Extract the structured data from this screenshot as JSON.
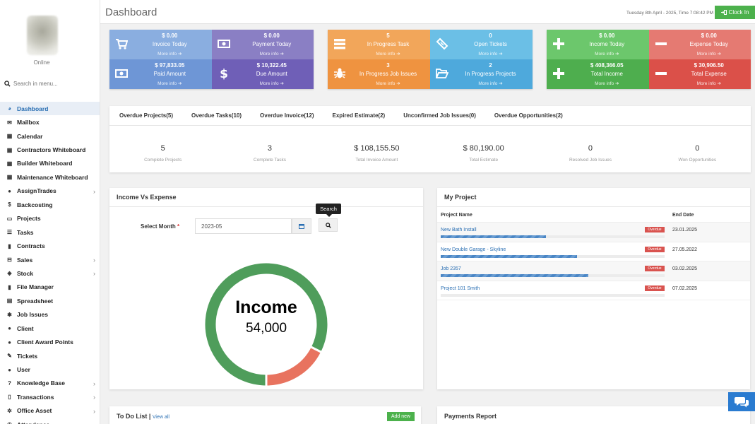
{
  "sidebar": {
    "status": "Online",
    "search_placeholder": "Search in menu...",
    "items": [
      {
        "label": "Dashboard",
        "icon": "palette-icon",
        "glyph": "◕",
        "active": true,
        "chevron": false
      },
      {
        "label": "Mailbox",
        "icon": "envelope-icon",
        "glyph": "✉",
        "active": false,
        "chevron": false
      },
      {
        "label": "Calendar",
        "icon": "calendar-icon",
        "glyph": "▦",
        "active": false,
        "chevron": false
      },
      {
        "label": "Contractors Whiteboard",
        "icon": "calendar-icon",
        "glyph": "▦",
        "active": false,
        "chevron": false
      },
      {
        "label": "Builder Whiteboard",
        "icon": "calendar-icon",
        "glyph": "▦",
        "active": false,
        "chevron": false
      },
      {
        "label": "Maintenance Whiteboard",
        "icon": "calendar-icon",
        "glyph": "▦",
        "active": false,
        "chevron": false
      },
      {
        "label": "AssignTrades",
        "icon": "user-icon",
        "glyph": "●",
        "active": false,
        "chevron": true
      },
      {
        "label": "Backcosting",
        "icon": "dollar-icon",
        "glyph": "$",
        "active": false,
        "chevron": false
      },
      {
        "label": "Projects",
        "icon": "folder-icon",
        "glyph": "▭",
        "active": false,
        "chevron": false
      },
      {
        "label": "Tasks",
        "icon": "list-icon",
        "glyph": "☰",
        "active": false,
        "chevron": false
      },
      {
        "label": "Contracts",
        "icon": "file-icon",
        "glyph": "▮",
        "active": false,
        "chevron": false
      },
      {
        "label": "Sales",
        "icon": "cart-icon",
        "glyph": "⊟",
        "active": false,
        "chevron": true
      },
      {
        "label": "Stock",
        "icon": "cube-icon",
        "glyph": "◈",
        "active": false,
        "chevron": true
      },
      {
        "label": "File Manager",
        "icon": "file-icon",
        "glyph": "▮",
        "active": false,
        "chevron": false
      },
      {
        "label": "Spreadsheet",
        "icon": "table-icon",
        "glyph": "▤",
        "active": false,
        "chevron": false
      },
      {
        "label": "Job Issues",
        "icon": "bug-icon",
        "glyph": "✱",
        "active": false,
        "chevron": false
      },
      {
        "label": "Client",
        "icon": "users-icon",
        "glyph": "●",
        "active": false,
        "chevron": false
      },
      {
        "label": "Client Award Points",
        "icon": "users-icon",
        "glyph": "●",
        "active": false,
        "chevron": false
      },
      {
        "label": "Tickets",
        "icon": "ticket-icon",
        "glyph": "✎",
        "active": false,
        "chevron": false
      },
      {
        "label": "User",
        "icon": "users-icon",
        "glyph": "●",
        "active": false,
        "chevron": false
      },
      {
        "label": "Knowledge Base",
        "icon": "question-icon",
        "glyph": "?",
        "active": false,
        "chevron": true
      },
      {
        "label": "Transactions",
        "icon": "book-icon",
        "glyph": "▯",
        "active": false,
        "chevron": true
      },
      {
        "label": "Office Asset",
        "icon": "cog-icon",
        "glyph": "✲",
        "active": false,
        "chevron": true
      },
      {
        "label": "Attendance",
        "icon": "clock-icon",
        "glyph": "◷",
        "active": false,
        "chevron": false
      }
    ]
  },
  "topbar": {
    "title": "Dashboard",
    "datetime": "Tuesday 8th April - 2025, Time  7:08:42 PM",
    "clock_in_label": "Clock In"
  },
  "tiles": {
    "more_info": "More info",
    "group1": [
      {
        "value": "$ 0.00",
        "label": "Invoice Today",
        "color": "#8aaee0",
        "icon": "cart-icon"
      },
      {
        "value": "$ 0.00",
        "label": "Payment Today",
        "color": "#8a7fc4",
        "icon": "money-icon"
      },
      {
        "value": "$ 97,833.05",
        "label": "Paid Amount",
        "color": "#6e96d6",
        "icon": "money-icon"
      },
      {
        "value": "$ 10,322.45",
        "label": "Due Amount",
        "color": "#6f5fb7",
        "icon": "dollar-icon"
      }
    ],
    "group2": [
      {
        "value": "5",
        "label": "In Progress Task",
        "color": "#f2a65a",
        "icon": "tasks-icon"
      },
      {
        "value": "0",
        "label": "Open Tickets",
        "color": "#6bbfe6",
        "icon": "ticket-icon"
      },
      {
        "value": "3",
        "label": "In Progress Job Issues",
        "color": "#ef9340",
        "icon": "bug-icon"
      },
      {
        "value": "2",
        "label": "In Progress Projects",
        "color": "#4ea9dc",
        "icon": "folder-open-icon"
      }
    ],
    "group3": [
      {
        "value": "$ 0.00",
        "label": "Income Today",
        "color": "#6cc76c",
        "icon": "plus-icon"
      },
      {
        "value": "$ 0.00",
        "label": "Expense Today",
        "color": "#e57a72",
        "icon": "minus-icon"
      },
      {
        "value": "$ 408,366.05",
        "label": "Total Income",
        "color": "#4eae4e",
        "icon": "plus-icon"
      },
      {
        "value": "$ 30,906.50",
        "label": "Total Expense",
        "color": "#db5049",
        "icon": "minus-icon"
      }
    ]
  },
  "overdue": {
    "tabs": [
      "Overdue Projects(5)",
      "Overdue Tasks(10)",
      "Overdue Invoice(12)",
      "Expired Estimate(2)",
      "Unconfirmed Job Issues(0)",
      "Overdue Opportunities(2)"
    ],
    "stats": [
      {
        "value": "5",
        "label": "Complete Projects"
      },
      {
        "value": "3",
        "label": "Complete Tasks"
      },
      {
        "value": "$ 108,155.50",
        "label": "Total Invoice Amount"
      },
      {
        "value": "$ 80,190.00",
        "label": "Total Estimate"
      },
      {
        "value": "0",
        "label": "Resolved Job Issues"
      },
      {
        "value": "0",
        "label": "Won Opportunities"
      }
    ]
  },
  "income_expense": {
    "title": "Income Vs Expense",
    "select_label": "Select Month",
    "required_mark": "*",
    "month_value": "2023-05",
    "search_tooltip": "Search",
    "center_label": "Income",
    "center_value": "54,000",
    "income_color": "#4f9d5b",
    "expense_color": "#e8735f"
  },
  "chart_data": {
    "type": "pie",
    "title": "",
    "categories": [
      "Income",
      "Expense"
    ],
    "values": [
      54000,
      11500
    ],
    "colors": [
      "#4f9d5b",
      "#e8735f"
    ]
  },
  "my_project": {
    "title": "My Project",
    "col_name": "Project Name",
    "col_end": "End Date",
    "rows": [
      {
        "name": "New Bath Install",
        "badge": "Overdue",
        "end": "23.01.2025",
        "progress": 0.47
      },
      {
        "name": "New Double Garage - Skyline",
        "badge": "Overdue",
        "end": "27.05.2022",
        "progress": 0.61
      },
      {
        "name": "Job 2357",
        "badge": "Overdue",
        "end": "03.02.2025",
        "progress": 0.66
      },
      {
        "name": "Project 101 Smith",
        "badge": "Overdue",
        "end": "07.02.2025",
        "progress": 0.0
      }
    ]
  },
  "todo": {
    "title": "To Do List",
    "separator": "|",
    "view_all": "View all",
    "add_new": "Add new"
  },
  "payments": {
    "title": "Payments Report"
  }
}
